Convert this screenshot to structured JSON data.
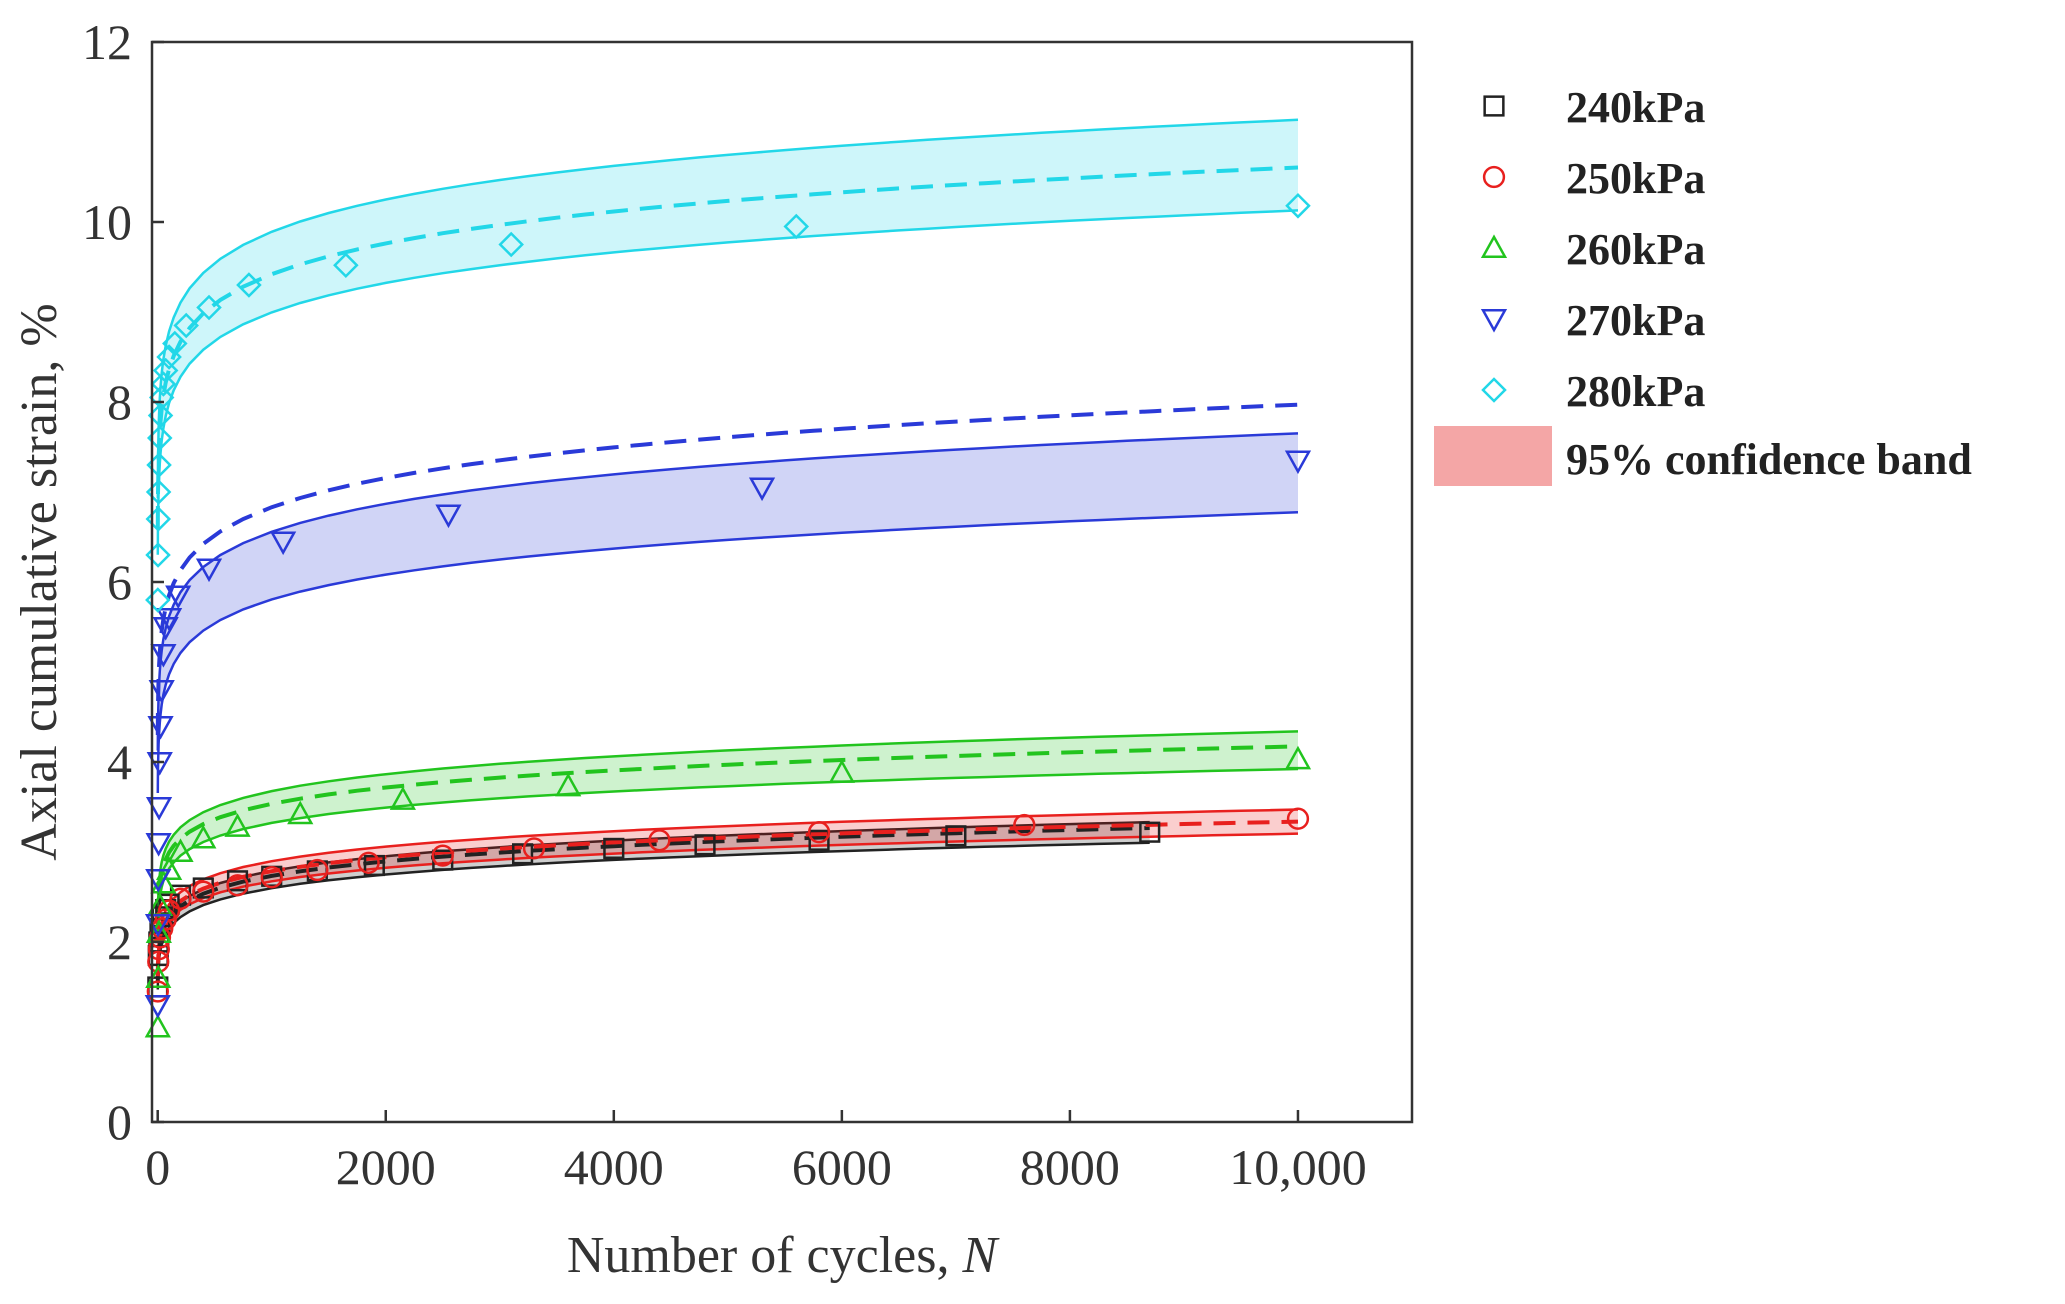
{
  "chart_data": {
    "type": "scatter",
    "title": "",
    "xlabel": "Number of cycles, ",
    "xlabel_italic": "N",
    "ylabel": "Axial cumulative strain, %",
    "xlim": [
      -50,
      11000
    ],
    "ylim": [
      0,
      12
    ],
    "x_ticks": [
      0,
      2000,
      4000,
      6000,
      8000,
      10000
    ],
    "x_tick_labels": [
      "0",
      "2000",
      "4000",
      "6000",
      "8000",
      "10,000"
    ],
    "y_ticks": [
      0,
      2,
      4,
      6,
      8,
      10,
      12
    ],
    "y_tick_labels": [
      "0",
      "2",
      "4",
      "6",
      "8",
      "10",
      "12"
    ],
    "grid": false,
    "legend_position": "right",
    "band_legend_label": "95% confidence band",
    "band_legend_color": "#f4a6a6",
    "series": [
      {
        "name": "240kPa",
        "marker": "square",
        "color": "#222222",
        "x": [
          1,
          5,
          10,
          20,
          40,
          70,
          100,
          200,
          400,
          700,
          1000,
          1400,
          1900,
          2500,
          3200,
          4000,
          4800,
          5800,
          7000,
          8700
        ],
        "y": [
          1.5,
          1.85,
          2.0,
          2.15,
          2.28,
          2.36,
          2.42,
          2.52,
          2.6,
          2.68,
          2.73,
          2.79,
          2.85,
          2.91,
          2.98,
          3.04,
          3.08,
          3.13,
          3.18,
          3.22
        ],
        "fit": {
          "a": 1.55,
          "b": 0.0822,
          "xmax": 8700
        },
        "band": {
          "lower": 0.95,
          "upper": 1.02
        }
      },
      {
        "name": "250kPa",
        "marker": "circle",
        "color": "#e8201e",
        "x": [
          1,
          5,
          10,
          20,
          40,
          70,
          100,
          200,
          400,
          700,
          1000,
          1400,
          1850,
          2500,
          3300,
          4400,
          5800,
          7600,
          10000
        ],
        "y": [
          1.45,
          1.78,
          1.92,
          2.05,
          2.15,
          2.25,
          2.35,
          2.48,
          2.56,
          2.63,
          2.72,
          2.8,
          2.88,
          2.96,
          3.04,
          3.13,
          3.22,
          3.3,
          3.37
        ],
        "fit": {
          "a": 1.62,
          "b": 0.0785,
          "xmax": 10000
        },
        "band": {
          "lower": 0.96,
          "upper": 1.04
        }
      },
      {
        "name": "260kPa",
        "marker": "triangle-up",
        "color": "#22c41e",
        "x": [
          1,
          5,
          10,
          20,
          50,
          100,
          200,
          400,
          700,
          1250,
          2150,
          3600,
          6000,
          10000
        ],
        "y": [
          1.05,
          1.6,
          2.1,
          2.4,
          2.65,
          2.8,
          3.0,
          3.15,
          3.28,
          3.42,
          3.58,
          3.73,
          3.88,
          4.03
        ],
        "fit": {
          "a": 2.15,
          "b": 0.072,
          "xmax": 10000
        },
        "band": {
          "lower": 0.94,
          "upper": 1.04
        }
      },
      {
        "name": "270kPa",
        "marker": "triangle-down",
        "color": "#2a3ad8",
        "x": [
          1,
          3,
          5,
          8,
          12,
          18,
          25,
          35,
          50,
          70,
          100,
          180,
          450,
          1100,
          2550,
          5300,
          10000
        ],
        "y": [
          1.3,
          2.2,
          2.7,
          3.1,
          3.5,
          4.0,
          4.4,
          4.8,
          5.2,
          5.5,
          5.6,
          5.85,
          6.15,
          6.45,
          6.75,
          7.05,
          7.35
        ],
        "fit": {
          "a": 4.3,
          "b": 0.067,
          "xmax": 10000
        },
        "band": {
          "lower": 0.85,
          "upper": 0.96
        }
      },
      {
        "name": "280kPa",
        "marker": "diamond",
        "color": "#22d7e8",
        "x": [
          1,
          3,
          5,
          8,
          12,
          18,
          25,
          35,
          50,
          70,
          100,
          150,
          250,
          450,
          800,
          1650,
          3100,
          5600,
          10000
        ],
        "y": [
          5.8,
          6.3,
          6.7,
          7.0,
          7.3,
          7.6,
          7.85,
          8.05,
          8.2,
          8.35,
          8.5,
          8.65,
          8.85,
          9.05,
          9.3,
          9.52,
          9.75,
          9.95,
          10.18
        ],
        "fit": {
          "a": 6.6,
          "b": 0.0515,
          "xmax": 10000
        },
        "band": {
          "lower": 0.955,
          "upper": 1.05
        }
      }
    ]
  }
}
